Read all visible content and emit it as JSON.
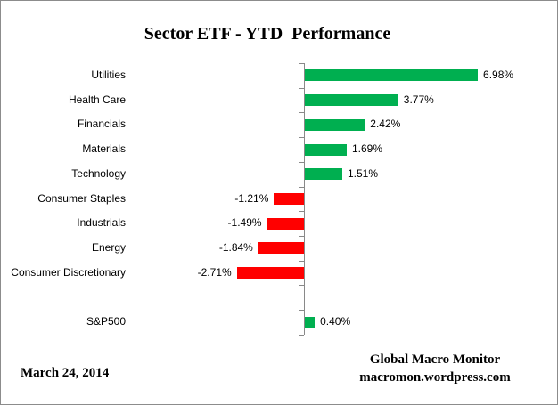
{
  "title": "Sector ETF - YTD  Performance",
  "footer": {
    "date": "March 24, 2014",
    "credit_line1": "Global Macro Monitor",
    "credit_line2": "macromon.wordpress.com"
  },
  "chart_data": {
    "type": "bar",
    "orientation": "horizontal",
    "title": "Sector ETF - YTD  Performance",
    "categories": [
      "Utilities",
      "Health Care",
      "Financials",
      "Materials",
      "Technology",
      "Consumer Staples",
      "Industrials",
      "Energy",
      "Consumer Discretionary",
      "",
      "S&P500"
    ],
    "values": [
      6.98,
      3.77,
      2.42,
      1.69,
      1.51,
      -1.21,
      -1.49,
      -1.84,
      -2.71,
      null,
      0.4
    ],
    "value_labels": [
      "6.98%",
      "3.77%",
      "2.42%",
      "1.69%",
      "1.51%",
      "-1.21%",
      "-1.49%",
      "-1.84%",
      "-2.71%",
      "",
      "0.40%"
    ],
    "xlabel": "",
    "ylabel": "",
    "xlim": [
      -3,
      7.2
    ],
    "grid": false,
    "legend": "none",
    "data_labels": true,
    "colors": {
      "positive": "#00AF50",
      "negative": "#FF0000",
      "axis": "#898989",
      "text": "#000000"
    }
  }
}
